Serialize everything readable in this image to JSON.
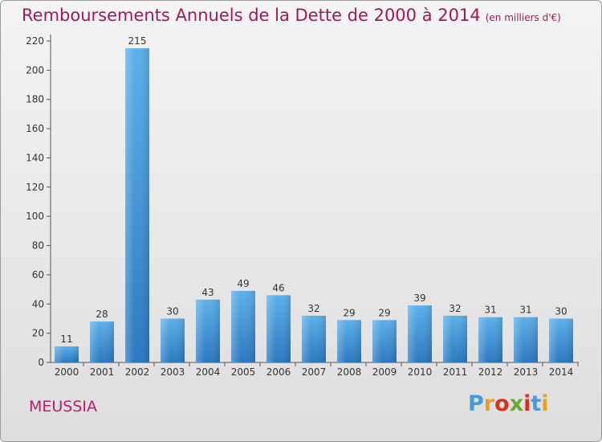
{
  "header": {
    "title": "Remboursements Annuels de la Dette de 2000 à 2014",
    "unit": "(en milliers d'€)"
  },
  "footer": {
    "commune": "MEUSSIA",
    "logo": "Proxiti",
    "logo_colors": [
      "#4a9ad8",
      "#e8a020",
      "#d83020",
      "#6aaa30",
      "#d83020",
      "#4a9ad8",
      "#e8a020"
    ]
  },
  "chart_data": {
    "type": "bar",
    "categories": [
      "2000",
      "2001",
      "2002",
      "2003",
      "2004",
      "2005",
      "2006",
      "2007",
      "2008",
      "2009",
      "2010",
      "2011",
      "2012",
      "2013",
      "2014"
    ],
    "values": [
      11,
      28,
      215,
      30,
      43,
      49,
      46,
      32,
      29,
      29,
      39,
      32,
      31,
      31,
      30
    ],
    "ylim": [
      0,
      220
    ],
    "yticks": [
      0,
      20,
      40,
      60,
      80,
      100,
      120,
      140,
      160,
      180,
      200,
      220
    ],
    "grid": false,
    "bar_color": "#3a93da"
  }
}
